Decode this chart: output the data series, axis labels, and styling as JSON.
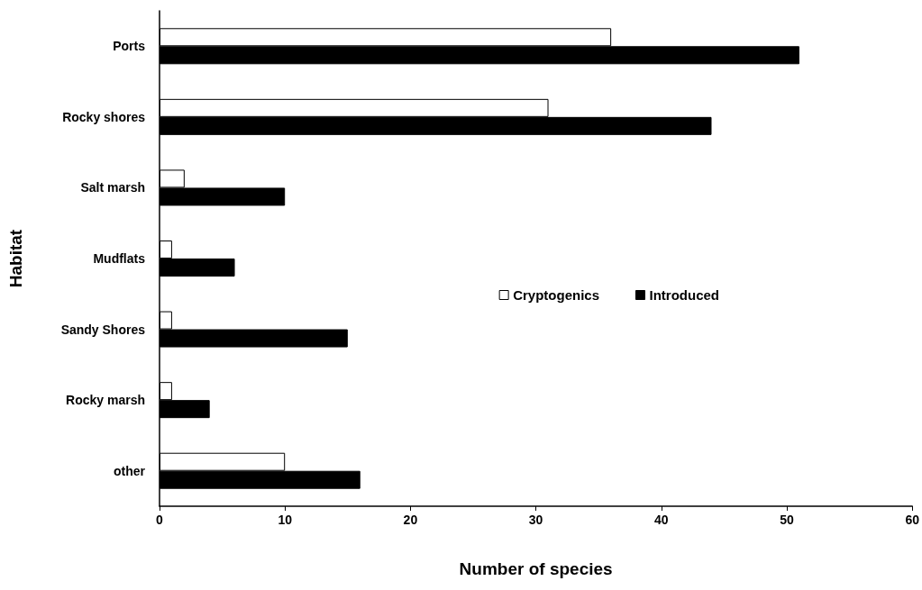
{
  "chart_data": {
    "type": "bar",
    "orientation": "horizontal",
    "xlabel": "Number of species",
    "ylabel": "Habitat",
    "categories": [
      "Ports",
      "Rocky shores",
      "Salt marsh",
      "Mudflats",
      "Sandy Shores",
      "Rocky marsh",
      "other"
    ],
    "series": [
      {
        "name": "Cryptogenics",
        "color": "#ffffff",
        "values": [
          36,
          31,
          2,
          1,
          1,
          1,
          10
        ]
      },
      {
        "name": "Introduced",
        "color": "#000000",
        "values": [
          51,
          44,
          10,
          6,
          15,
          4,
          16
        ]
      }
    ],
    "xlim": [
      0,
      60
    ],
    "xticks": [
      0,
      10,
      20,
      30,
      40,
      50,
      60
    ],
    "grid": false,
    "legend": "right"
  }
}
